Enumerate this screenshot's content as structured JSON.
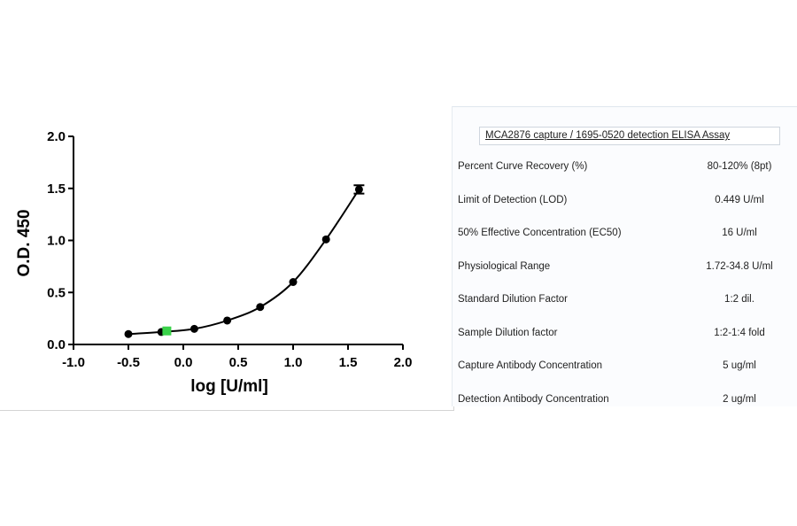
{
  "chart_data": {
    "type": "scatter",
    "ylabel": "O.D. 450",
    "xlabel": "log [U/ml]",
    "xlim": [
      -1.0,
      2.0
    ],
    "ylim": [
      0.0,
      2.0
    ],
    "xticks": [
      "-1.0",
      "-0.5",
      "0.0",
      "0.5",
      "1.0",
      "1.5",
      "2.0"
    ],
    "yticks": [
      "0.0",
      "0.5",
      "1.0",
      "1.5",
      "2.0"
    ],
    "grid": false,
    "points": [
      {
        "x": -0.5,
        "y": 0.1
      },
      {
        "x": -0.2,
        "y": 0.12
      },
      {
        "x": 0.1,
        "y": 0.15
      },
      {
        "x": 0.4,
        "y": 0.23
      },
      {
        "x": 0.7,
        "y": 0.36
      },
      {
        "x": 1.0,
        "y": 0.6
      },
      {
        "x": 1.3,
        "y": 1.01
      },
      {
        "x": 1.6,
        "y": 1.49,
        "error": 0.04
      }
    ],
    "highlight": {
      "x": -0.15,
      "y": 0.13,
      "color": "#3ad24a"
    },
    "marker_color": "#000000",
    "curve_color": "#000000"
  },
  "table": {
    "title": "MCA2876 capture / 1695-0520 detection ELISA Assay",
    "rows": [
      {
        "param": "Percent Curve Recovery (%)",
        "value": "80-120% (8pt)"
      },
      {
        "param": "Limit of Detection (LOD)",
        "value": "0.449 U/ml"
      },
      {
        "param": "50% Effective Concentration (EC50)",
        "value": "16 U/ml"
      },
      {
        "param": "Physiological Range",
        "value": "1.72-34.8 U/ml"
      },
      {
        "param": "Standard Dilution Factor",
        "value": "1:2 dil."
      },
      {
        "param": "Sample Dilution factor",
        "value": "1:2-1:4 fold"
      },
      {
        "param": "Capture Antibody Concentration",
        "value": "5 ug/ml"
      },
      {
        "param": "Detection Antibody Concentration",
        "value": "2 ug/ml"
      }
    ]
  }
}
